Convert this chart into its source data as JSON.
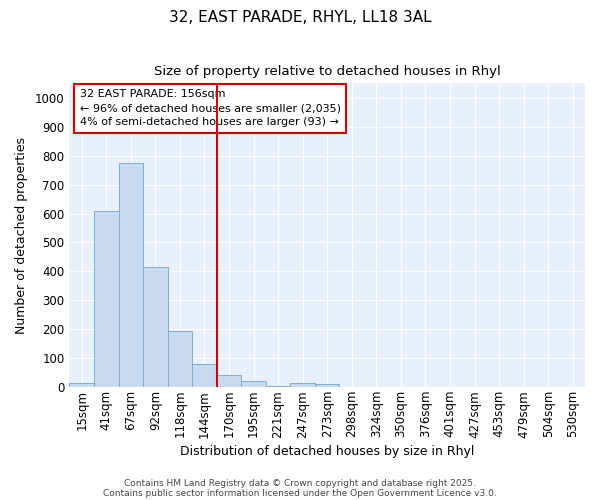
{
  "title1": "32, EAST PARADE, RHYL, LL18 3AL",
  "title2": "Size of property relative to detached houses in Rhyl",
  "xlabel": "Distribution of detached houses by size in Rhyl",
  "ylabel": "Number of detached properties",
  "categories": [
    "15sqm",
    "41sqm",
    "67sqm",
    "92sqm",
    "118sqm",
    "144sqm",
    "170sqm",
    "195sqm",
    "221sqm",
    "247sqm",
    "273sqm",
    "298sqm",
    "324sqm",
    "350sqm",
    "376sqm",
    "401sqm",
    "427sqm",
    "453sqm",
    "479sqm",
    "504sqm",
    "530sqm"
  ],
  "values": [
    15,
    610,
    775,
    415,
    195,
    80,
    42,
    20,
    5,
    15,
    10,
    0,
    0,
    0,
    0,
    0,
    0,
    0,
    0,
    0,
    0
  ],
  "bar_color": "#c9d9f0",
  "bar_edge_color": "#7bafd4",
  "background_color": "#ffffff",
  "plot_bg_color": "#e8f0fb",
  "vline_x": 5.5,
  "vline_color": "#cc0000",
  "annotation_text": "32 EAST PARADE: 156sqm\n← 96% of detached houses are smaller (2,035)\n4% of semi-detached houses are larger (93) →",
  "annotation_box_color": "#cc0000",
  "ylim": [
    0,
    1050
  ],
  "yticks": [
    0,
    100,
    200,
    300,
    400,
    500,
    600,
    700,
    800,
    900,
    1000
  ],
  "footer1": "Contains HM Land Registry data © Crown copyright and database right 2025.",
  "footer2": "Contains public sector information licensed under the Open Government Licence v3.0.",
  "title1_fontsize": 11,
  "title2_fontsize": 9.5,
  "xlabel_fontsize": 9,
  "ylabel_fontsize": 9,
  "tick_fontsize": 8.5,
  "annot_fontsize": 8
}
